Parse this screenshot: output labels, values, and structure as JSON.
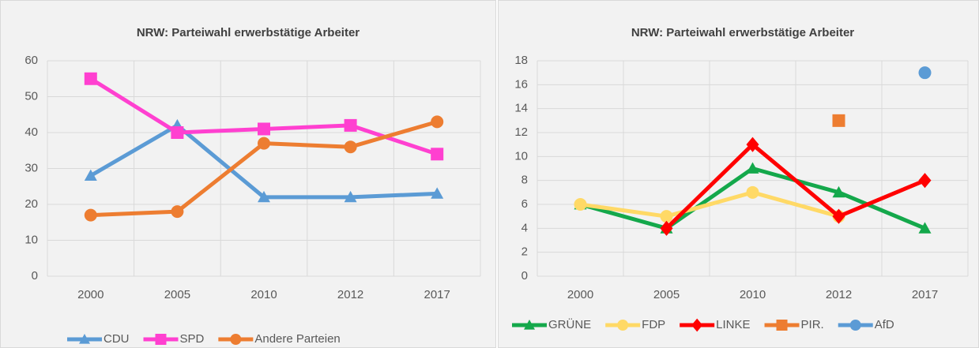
{
  "chart_data": [
    {
      "type": "line",
      "title": "NRW:  Parteiwahl erwerbstätige Arbeiter",
      "categories": [
        "2000",
        "2005",
        "2010",
        "2012",
        "2017"
      ],
      "series": [
        {
          "name": "CDU",
          "color": "#5b9bd5",
          "marker": "triangle",
          "values": [
            28,
            42,
            22,
            22,
            23
          ]
        },
        {
          "name": "SPD",
          "color": "#ff40d0",
          "marker": "square",
          "values": [
            55,
            40,
            41,
            42,
            34
          ]
        },
        {
          "name": "Andere Parteien",
          "color": "#ed7d31",
          "marker": "circle",
          "values": [
            17,
            18,
            37,
            36,
            43
          ]
        }
      ],
      "ylim": [
        0,
        60
      ],
      "yticks": [
        0,
        10,
        20,
        30,
        40,
        50,
        60
      ],
      "grid": true
    },
    {
      "type": "line",
      "title": "NRW:  Parteiwahl erwerbstätige Arbeiter",
      "categories": [
        "2000",
        "2005",
        "2010",
        "2012",
        "2017"
      ],
      "series": [
        {
          "name": "GRÜNE",
          "color": "#14a84b",
          "marker": "triangle",
          "values": [
            6,
            4,
            9,
            7,
            4
          ]
        },
        {
          "name": "FDP",
          "color": "#ffd966",
          "marker": "circle",
          "values": [
            6,
            5,
            7,
            5,
            null
          ]
        },
        {
          "name": "LINKE",
          "color": "#ff0000",
          "marker": "diamond",
          "values": [
            null,
            4,
            11,
            5,
            8
          ]
        },
        {
          "name": "PIR.",
          "color": "#ed7d31",
          "marker": "square",
          "values": [
            null,
            null,
            null,
            13,
            null
          ]
        },
        {
          "name": "AfD",
          "color": "#5b9bd5",
          "marker": "circle",
          "values": [
            null,
            null,
            null,
            null,
            17
          ]
        }
      ],
      "ylim": [
        0,
        18
      ],
      "yticks": [
        0,
        2,
        4,
        6,
        8,
        10,
        12,
        14,
        16,
        18
      ],
      "grid": true
    }
  ]
}
